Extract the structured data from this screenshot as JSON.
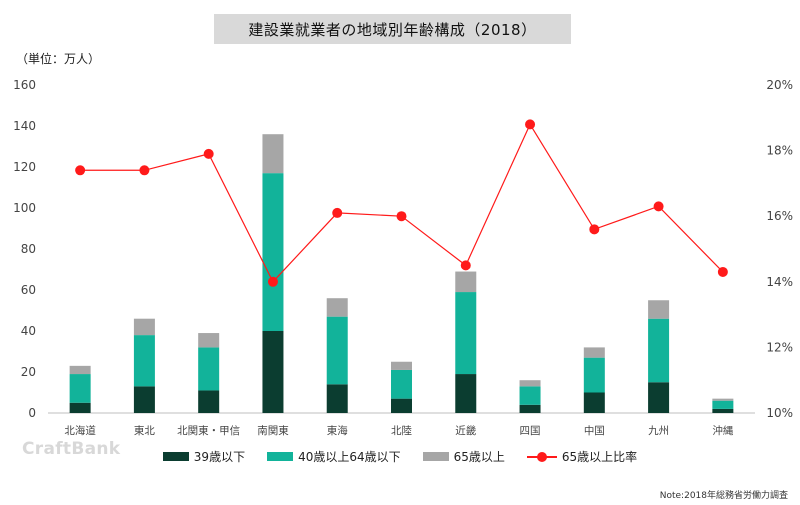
{
  "title": "建設業就業者の地域別年齢構成（2018）",
  "unit_label": "（単位：万人）",
  "watermark": "CraftBank",
  "note": "Note:2018年総務省労働力調査",
  "colors": {
    "under39": "#0b3d30",
    "age40to64": "#12b39a",
    "over65": "#a6a6a6",
    "ratio_line": "#ff1a1a"
  },
  "chart_data": {
    "type": "bar",
    "stacked": true,
    "categories": [
      "北海道",
      "東北",
      "北関東・甲信",
      "南関東",
      "東海",
      "北陸",
      "近畿",
      "四国",
      "中国",
      "九州",
      "沖縄"
    ],
    "series": [
      {
        "name": "39歳以下",
        "values": [
          5,
          13,
          11,
          40,
          14,
          7,
          19,
          4,
          10,
          15,
          2
        ]
      },
      {
        "name": "40歳以上64歳以下",
        "values": [
          14,
          25,
          21,
          77,
          33,
          14,
          40,
          9,
          17,
          31,
          4
        ]
      },
      {
        "name": "65歳以上",
        "values": [
          4,
          8,
          7,
          19,
          9,
          4,
          10,
          3,
          5,
          9,
          1
        ]
      }
    ],
    "line_series": {
      "name": "65歳以上比率",
      "axis": "right",
      "values": [
        17.4,
        17.4,
        17.9,
        14.0,
        16.1,
        16.0,
        14.5,
        18.8,
        15.6,
        16.3,
        14.3
      ]
    },
    "ylim": [
      0,
      160
    ],
    "yticks": [
      0,
      20,
      40,
      60,
      80,
      100,
      120,
      140,
      160
    ],
    "y2lim": [
      10,
      20
    ],
    "y2ticks": [
      10,
      12,
      14,
      16,
      18,
      20
    ],
    "y2tick_labels": [
      "10%",
      "12%",
      "14%",
      "16%",
      "18%",
      "20%"
    ],
    "legend_position": "bottom",
    "grid": false
  }
}
